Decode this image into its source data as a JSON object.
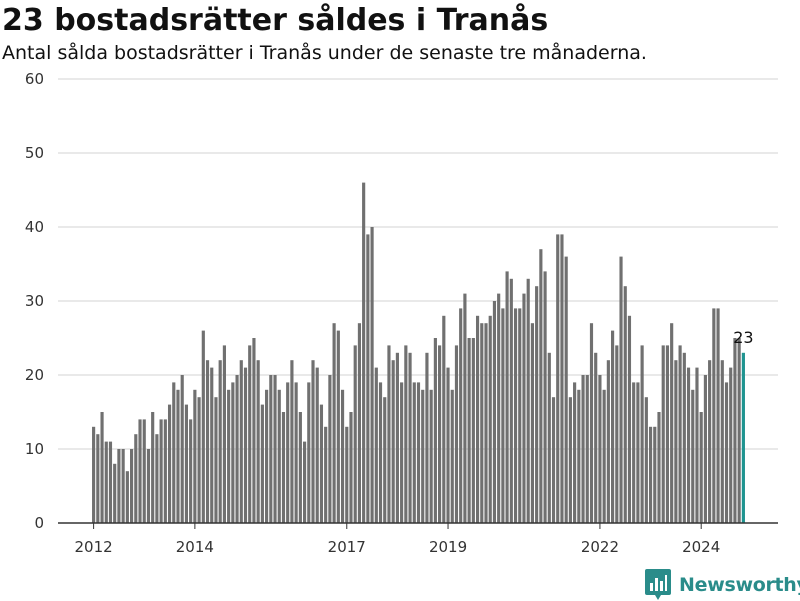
{
  "header": {
    "title": "23 bostadsrätter såldes i Tranås",
    "subtitle": "Antal sålda bostadsrätter i Tranås under de senaste tre månaderna."
  },
  "brand": {
    "name": "Newsworthy",
    "icon": "chart-logo-icon"
  },
  "colors": {
    "bar": "#707070",
    "highlight": "#1f9490",
    "grid": "#e2e2e2",
    "axis": "#333333",
    "brand": "#2a8c8a"
  },
  "chart_data": {
    "type": "bar",
    "title": "23 bostadsrätter såldes i Tranås",
    "subtitle": "Antal sålda bostadsrätter i Tranås under de senaste tre månaderna.",
    "ylim": [
      0,
      60
    ],
    "y_ticks": [
      0,
      10,
      20,
      30,
      40,
      50,
      60
    ],
    "x_ticks": [
      "2012",
      "2014",
      "2017",
      "2019",
      "2022",
      "2024"
    ],
    "grid": true,
    "highlight_label": "23",
    "values": [
      13,
      12,
      15,
      11,
      11,
      8,
      10,
      10,
      7,
      10,
      12,
      14,
      14,
      10,
      15,
      12,
      14,
      14,
      16,
      19,
      18,
      20,
      16,
      14,
      18,
      17,
      26,
      22,
      21,
      17,
      22,
      24,
      18,
      19,
      20,
      22,
      21,
      24,
      25,
      22,
      16,
      18,
      20,
      20,
      18,
      15,
      19,
      22,
      19,
      15,
      11,
      19,
      22,
      21,
      16,
      13,
      20,
      27,
      26,
      18,
      13,
      15,
      24,
      27,
      46,
      39,
      40,
      21,
      19,
      17,
      24,
      22,
      23,
      19,
      24,
      23,
      19,
      19,
      18,
      23,
      18,
      25,
      24,
      28,
      21,
      18,
      24,
      29,
      31,
      25,
      25,
      28,
      27,
      27,
      28,
      30,
      31,
      29,
      34,
      33,
      29,
      29,
      31,
      33,
      27,
      32,
      37,
      34,
      23,
      17,
      39,
      39,
      36,
      17,
      19,
      18,
      20,
      20,
      27,
      23,
      20,
      18,
      22,
      26,
      24,
      36,
      32,
      28,
      19,
      19,
      24,
      17,
      13,
      13,
      15,
      24,
      24,
      27,
      22,
      24,
      23,
      21,
      18,
      21,
      15,
      20,
      22,
      29,
      29,
      22,
      19,
      21,
      25,
      25,
      23
    ]
  }
}
